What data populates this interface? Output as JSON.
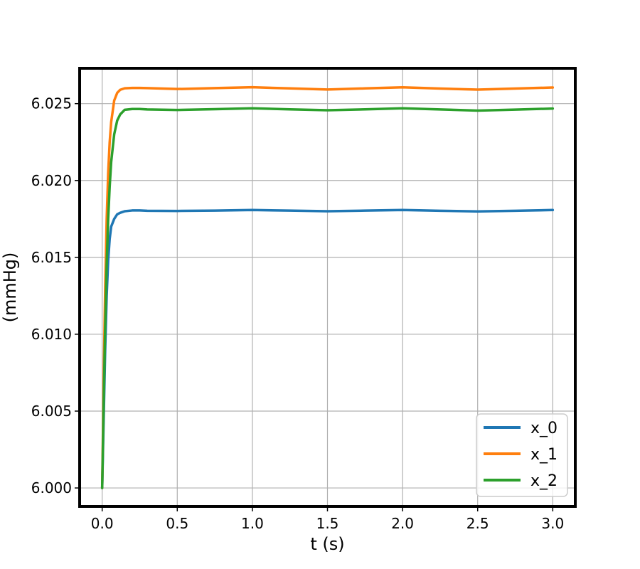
{
  "chart_data": {
    "type": "line",
    "title": "",
    "xlabel": "t (s)",
    "ylabel": "(mmHg)",
    "xlim": [
      -0.15,
      3.15
    ],
    "ylim": [
      5.9988,
      6.0273
    ],
    "xticks": [
      0.0,
      0.5,
      1.0,
      1.5,
      2.0,
      2.5,
      3.0
    ],
    "xtick_labels": [
      "0.0",
      "0.5",
      "1.0",
      "1.5",
      "2.0",
      "2.5",
      "3.0"
    ],
    "yticks": [
      6.0,
      6.005,
      6.01,
      6.015,
      6.02,
      6.025
    ],
    "ytick_labels": [
      "6.000",
      "6.005",
      "6.010",
      "6.015",
      "6.020",
      "6.025"
    ],
    "grid": true,
    "legend_position": "bottom-right",
    "series": [
      {
        "name": "x_0",
        "color": "#1f77b4",
        "x": [
          0.0,
          0.01,
          0.02,
          0.03,
          0.04,
          0.05,
          0.06,
          0.08,
          0.1,
          0.12,
          0.15,
          0.2,
          0.25,
          0.3,
          0.5,
          0.75,
          1.0,
          1.25,
          1.5,
          1.75,
          2.0,
          2.25,
          2.5,
          2.75,
          3.0
        ],
        "y": [
          6.0,
          6.0045,
          6.009,
          6.0125,
          6.0148,
          6.0162,
          6.017,
          6.0175,
          6.0178,
          6.0179,
          6.018,
          6.01805,
          6.01805,
          6.01803,
          6.01802,
          6.01804,
          6.01808,
          6.01804,
          6.018,
          6.01804,
          6.01808,
          6.01803,
          6.01799,
          6.01803,
          6.01808
        ]
      },
      {
        "name": "x_1",
        "color": "#ff7f0e",
        "x": [
          0.0,
          0.01,
          0.02,
          0.03,
          0.04,
          0.05,
          0.06,
          0.08,
          0.1,
          0.12,
          0.15,
          0.2,
          0.25,
          0.3,
          0.5,
          0.75,
          1.0,
          1.25,
          1.5,
          1.75,
          2.0,
          2.25,
          2.5,
          2.75,
          3.0
        ],
        "y": [
          6.0,
          6.007,
          6.013,
          6.0175,
          6.0205,
          6.0225,
          6.0238,
          6.0252,
          6.0257,
          6.0259,
          6.026,
          6.02602,
          6.02602,
          6.02601,
          6.02595,
          6.02601,
          6.02607,
          6.02599,
          6.02592,
          6.02599,
          6.02606,
          6.02598,
          6.02591,
          6.02598,
          6.02605
        ]
      },
      {
        "name": "x_2",
        "color": "#2ca02c",
        "x": [
          0.0,
          0.01,
          0.02,
          0.03,
          0.04,
          0.05,
          0.06,
          0.08,
          0.1,
          0.12,
          0.15,
          0.2,
          0.25,
          0.3,
          0.5,
          0.75,
          1.0,
          1.25,
          1.5,
          1.75,
          2.0,
          2.25,
          2.5,
          2.75,
          3.0
        ],
        "y": [
          6.0,
          6.0055,
          6.0105,
          6.0145,
          6.0175,
          6.0196,
          6.0212,
          6.023,
          6.0239,
          6.0243,
          6.0246,
          6.02465,
          6.02465,
          6.02462,
          6.02459,
          6.02464,
          6.0247,
          6.02463,
          6.02457,
          6.02463,
          6.0247,
          6.02462,
          6.02455,
          6.02461,
          6.02468
        ]
      }
    ]
  }
}
